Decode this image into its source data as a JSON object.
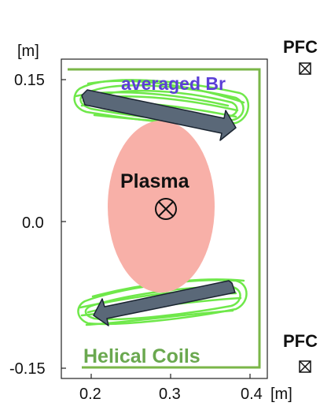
{
  "chart_data": {
    "type": "diagram",
    "y_unit": "[m]",
    "x_unit": "[m]",
    "y_ticks": [
      "0.15",
      "0.0",
      "-0.15"
    ],
    "x_ticks": [
      "0.2",
      "0.3",
      "0.4"
    ],
    "xlim": [
      0.2,
      0.4
    ],
    "ylim": [
      -0.15,
      0.15
    ],
    "labels": {
      "averaged_br": "averaged Br",
      "plasma": "Plasma",
      "helical_coils": "Helical Coils",
      "pfc_top": "PFC",
      "pfc_bottom": "PFC"
    },
    "colors": {
      "coil_green": "#6fe84a",
      "frame_green": "#7ab648",
      "plasma_fill": "#f8b0a8",
      "arrow_fill": "#5a6878",
      "br_text": "#5b3fd6",
      "coils_text": "#6aa84f"
    },
    "icons": {
      "plasma_current": "circled-times-icon",
      "pfc_coil": "boxed-x-icon"
    }
  }
}
